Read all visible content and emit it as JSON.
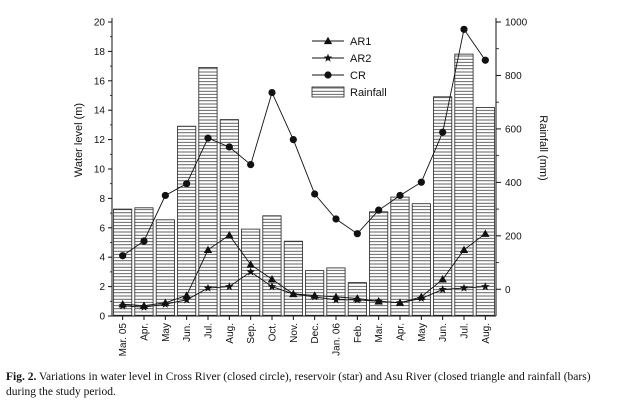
{
  "caption": {
    "label": "Fig. 2.",
    "text": "Variations in water level in Cross River (closed circle), reservoir (star) and Asu River (closed triangle and rainfall (bars) during the study period."
  },
  "chart_data": {
    "type": "bar+line",
    "categories": [
      "Mar. 05",
      "Apr.",
      "May",
      "Jun.",
      "Jul.",
      "Aug.",
      "Sep.",
      "Oct.",
      "Nov.",
      "Dec.",
      "Jan. 06",
      "Feb.",
      "Mar.",
      "Apr.",
      "May",
      "Jun.",
      "Jul.",
      "Aug."
    ],
    "ylabel": "Water level (m)",
    "ylim": [
      0,
      20
    ],
    "yticks": [
      "0",
      "2",
      "4",
      "6",
      "8",
      "10",
      "12",
      "14",
      "16",
      "18",
      "20"
    ],
    "y2label": "Rainfall (mm)",
    "y2lim": [
      -100,
      1000
    ],
    "y2ticks": [
      "0",
      "200",
      "400",
      "600",
      "800",
      "1000"
    ],
    "legend_position": "top-center",
    "bars": {
      "name": "Rainfall",
      "axis": "right",
      "values": [
        300,
        305,
        260,
        610,
        830,
        635,
        225,
        275,
        180,
        70,
        80,
        25,
        290,
        345,
        320,
        720,
        880,
        680
      ]
    },
    "series": [
      {
        "name": "AR1",
        "marker": "triangle",
        "values": [
          0.8,
          0.7,
          0.9,
          1.4,
          4.5,
          5.5,
          3.5,
          2.5,
          1.5,
          1.4,
          1.3,
          1.2,
          1.0,
          0.9,
          1.3,
          2.5,
          4.5,
          5.6
        ]
      },
      {
        "name": "AR2",
        "marker": "star",
        "values": [
          0.7,
          0.6,
          0.8,
          1.1,
          1.9,
          2.0,
          3.0,
          2.0,
          1.5,
          1.3,
          1.1,
          1.1,
          1.0,
          0.9,
          1.2,
          1.8,
          1.9,
          2.0
        ]
      },
      {
        "name": "CR",
        "marker": "circle",
        "values": [
          4.1,
          5.1,
          8.2,
          9.0,
          12.1,
          11.5,
          10.3,
          15.2,
          12.0,
          8.3,
          6.6,
          5.6,
          7.2,
          8.2,
          9.1,
          12.5,
          19.5,
          17.4
        ]
      }
    ]
  }
}
